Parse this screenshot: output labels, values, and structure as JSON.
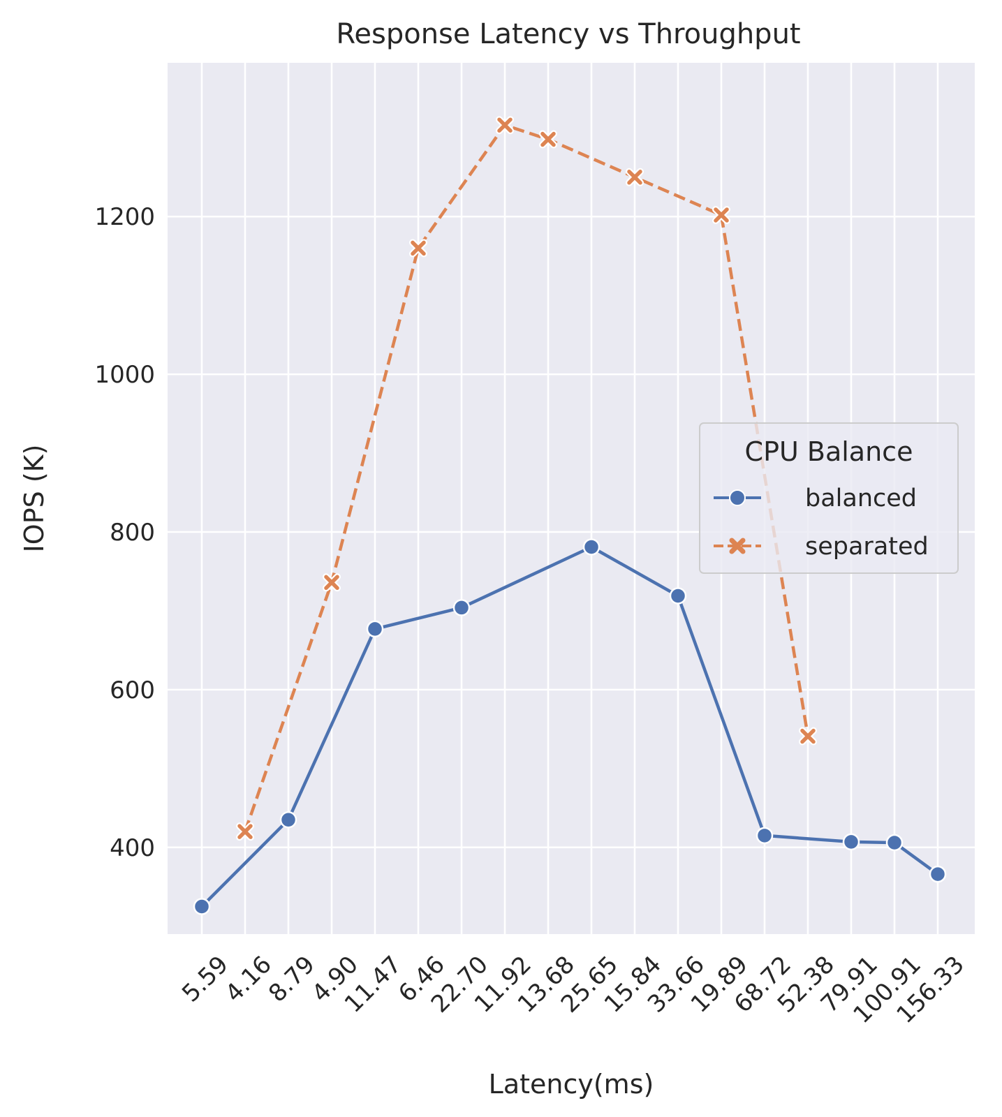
{
  "chart_data": {
    "type": "line",
    "title": "Response Latency vs Throughput",
    "xlabel": "Latency(ms)",
    "ylabel": "IOPS (K)",
    "categories": [
      "5.59",
      "4.16",
      "8.79",
      "4.90",
      "11.47",
      "6.46",
      "22.70",
      "11.92",
      "13.68",
      "25.65",
      "15.84",
      "33.66",
      "19.89",
      "68.72",
      "52.38",
      "79.91",
      "100.91",
      "156.33"
    ],
    "ylim": [
      290,
      1395
    ],
    "yticks": [
      400,
      600,
      800,
      1000,
      1200
    ],
    "grid": true,
    "legend": {
      "title": "CPU Balance",
      "placement": "center-right"
    },
    "series": [
      {
        "name": "balanced",
        "color": "#4c72b0",
        "marker": "circle",
        "linestyle": "solid",
        "values": [
          325,
          null,
          435,
          null,
          677,
          null,
          704,
          null,
          null,
          781,
          null,
          719,
          null,
          415,
          null,
          407,
          406,
          366
        ]
      },
      {
        "name": "separated",
        "color": "#dd8452",
        "marker": "x",
        "linestyle": "dashed",
        "values": [
          null,
          420,
          null,
          736,
          null,
          1160,
          null,
          1316,
          1298,
          null,
          1250,
          null,
          1202,
          null,
          541,
          null,
          null,
          null
        ]
      }
    ]
  }
}
